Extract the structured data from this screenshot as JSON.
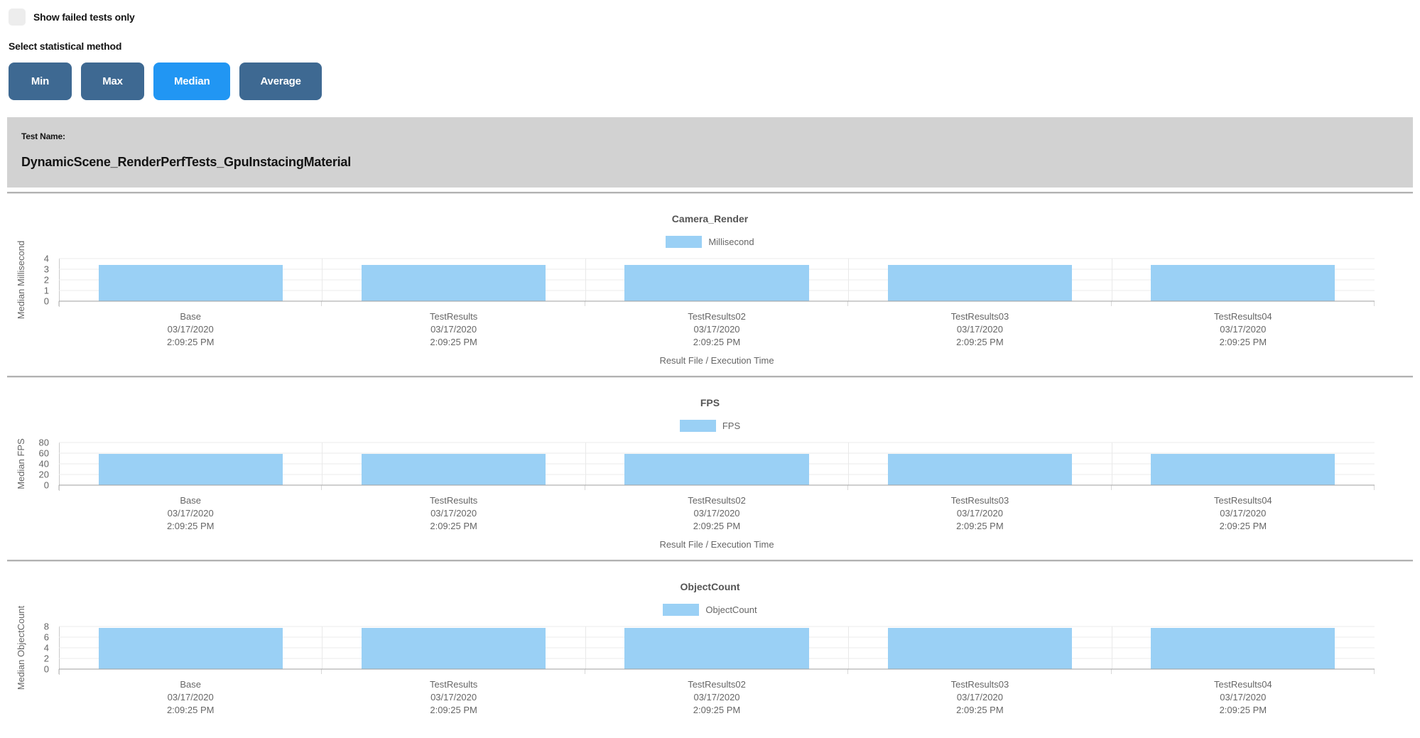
{
  "header": {
    "show_failed_label": "Show failed tests only",
    "stat_method_label": "Select statistical method",
    "stat_buttons": [
      {
        "label": "Min",
        "active": false
      },
      {
        "label": "Max",
        "active": false
      },
      {
        "label": "Median",
        "active": true
      },
      {
        "label": "Average",
        "active": false
      }
    ]
  },
  "test_banner": {
    "caption": "Test Name:",
    "name": "DynamicScene_RenderPerfTests_GpuInstacingMaterial"
  },
  "colors": {
    "bar_fill": "#9ad0f5",
    "button_default": "#3e6992",
    "button_active": "#2196f3",
    "banner_bg": "#d2d2d2"
  },
  "chart_data": [
    {
      "type": "bar",
      "title": "Camera_Render",
      "legend": "Millisecond",
      "ylabel": "Median Millisecond",
      "xlabel": "Result File / Execution Time",
      "ylim": [
        0,
        4
      ],
      "yticks": [
        0,
        1,
        2,
        3,
        4
      ],
      "grid": true,
      "legend_position": "top",
      "categories": [
        {
          "name": "Base",
          "date": "03/17/2020",
          "time": "2:09:25 PM"
        },
        {
          "name": "TestResults",
          "date": "03/17/2020",
          "time": "2:09:25 PM"
        },
        {
          "name": "TestResults02",
          "date": "03/17/2020",
          "time": "2:09:25 PM"
        },
        {
          "name": "TestResults03",
          "date": "03/17/2020",
          "time": "2:09:25 PM"
        },
        {
          "name": "TestResults04",
          "date": "03/17/2020",
          "time": "2:09:25 PM"
        }
      ],
      "values": [
        3.4,
        3.4,
        3.4,
        3.4,
        3.4
      ]
    },
    {
      "type": "bar",
      "title": "FPS",
      "legend": "FPS",
      "ylabel": "Median FPS",
      "xlabel": "Result File / Execution Time",
      "ylim": [
        0,
        80
      ],
      "yticks": [
        0,
        20,
        40,
        60,
        80
      ],
      "grid": true,
      "legend_position": "top",
      "categories": [
        {
          "name": "Base",
          "date": "03/17/2020",
          "time": "2:09:25 PM"
        },
        {
          "name": "TestResults",
          "date": "03/17/2020",
          "time": "2:09:25 PM"
        },
        {
          "name": "TestResults02",
          "date": "03/17/2020",
          "time": "2:09:25 PM"
        },
        {
          "name": "TestResults03",
          "date": "03/17/2020",
          "time": "2:09:25 PM"
        },
        {
          "name": "TestResults04",
          "date": "03/17/2020",
          "time": "2:09:25 PM"
        }
      ],
      "values": [
        59,
        59,
        59,
        59,
        59
      ]
    },
    {
      "type": "bar",
      "title": "ObjectCount",
      "legend": "ObjectCount",
      "ylabel": "Median ObjectCount",
      "xlabel": "",
      "ylim": [
        0,
        8
      ],
      "yticks": [
        0,
        2,
        4,
        6,
        8
      ],
      "grid": true,
      "legend_position": "top",
      "categories": [
        {
          "name": "Base",
          "date": "03/17/2020",
          "time": "2:09:25 PM"
        },
        {
          "name": "TestResults",
          "date": "03/17/2020",
          "time": "2:09:25 PM"
        },
        {
          "name": "TestResults02",
          "date": "03/17/2020",
          "time": "2:09:25 PM"
        },
        {
          "name": "TestResults03",
          "date": "03/17/2020",
          "time": "2:09:25 PM"
        },
        {
          "name": "TestResults04",
          "date": "03/17/2020",
          "time": "2:09:25 PM"
        }
      ],
      "values": [
        7.8,
        7.8,
        7.8,
        7.8,
        7.8
      ]
    }
  ]
}
